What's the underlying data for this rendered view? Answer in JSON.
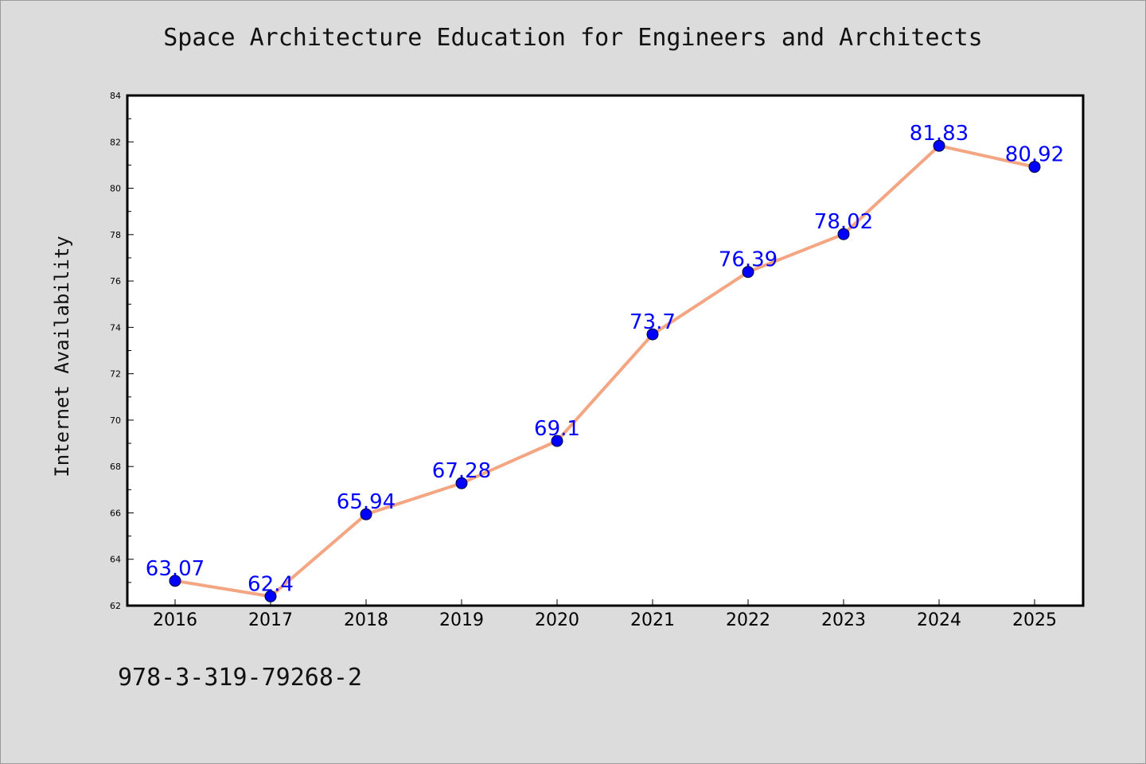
{
  "chart_data": {
    "type": "line",
    "title": "Space Architecture Education for Engineers and Architects",
    "xlabel": "",
    "ylabel": "Internet Availability",
    "categories": [
      "2016",
      "2017",
      "2018",
      "2019",
      "2020",
      "2021",
      "2022",
      "2023",
      "2024",
      "2025"
    ],
    "series": [
      {
        "values": [
          63.07,
          62.4,
          65.94,
          67.28,
          69.1,
          73.7,
          76.39,
          78.02,
          81.83,
          80.92
        ],
        "data_labels": [
          "63.07",
          "62.4",
          "65.94",
          "67.28",
          "69.1",
          "73.7",
          "76.39",
          "78.02",
          "81.83",
          "80.92"
        ]
      }
    ],
    "ylim": [
      62,
      84
    ],
    "yticks": [
      "62",
      "64",
      "66",
      "68",
      "70",
      "72",
      "74",
      "76",
      "78",
      "80",
      "82",
      "84"
    ],
    "grid": false,
    "colors": {
      "line": "#f4a582",
      "marker": "#0000ff",
      "label": "#0000ff"
    }
  },
  "footer": {
    "code": "978-3-319-79268-2"
  }
}
